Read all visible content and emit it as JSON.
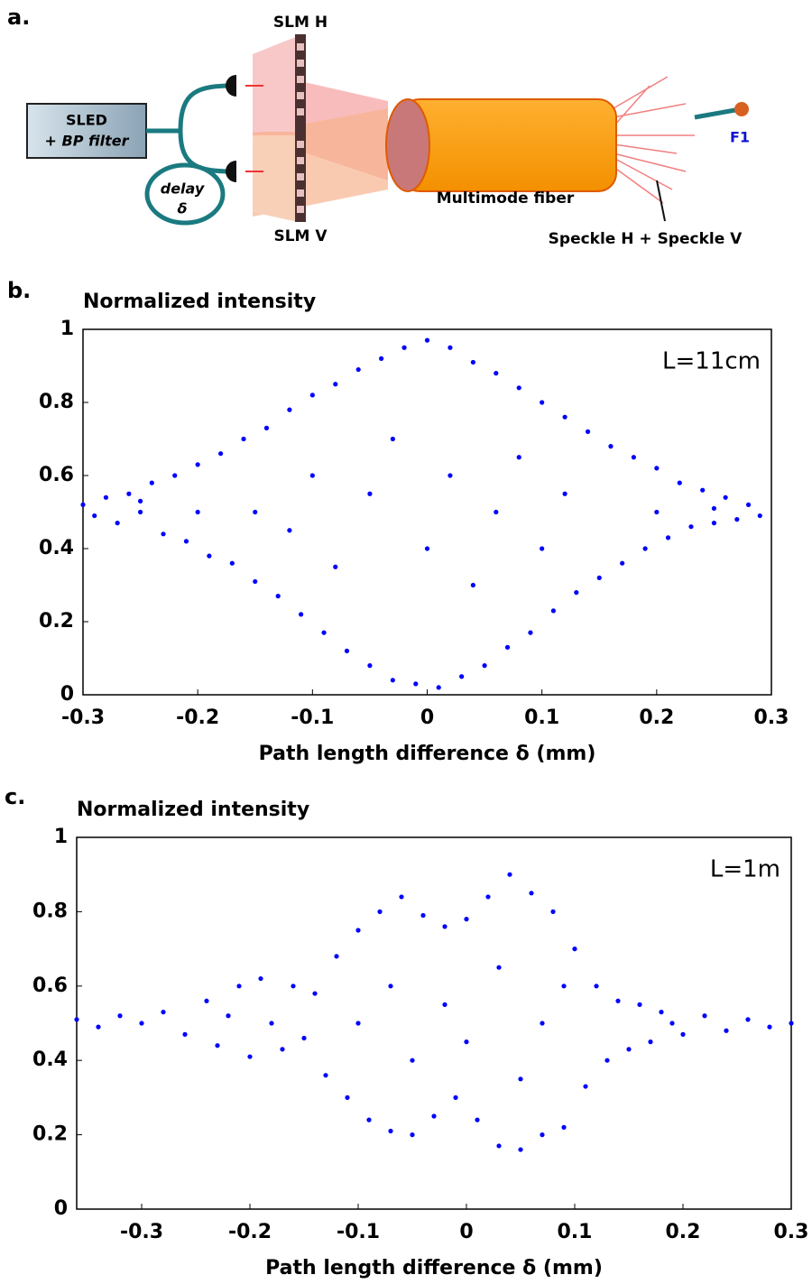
{
  "diagram": {
    "label": "a.",
    "slm_h": "SLM H",
    "slm_v": "SLM V",
    "source": "SLED",
    "filter": "+ BP filter",
    "delay": "delay",
    "delta": "δ",
    "fiber": "Multimode fiber",
    "speckle": "Speckle H + Speckle V",
    "detector": "F1"
  },
  "chart_data": [
    {
      "type": "scatter",
      "panel": "b.",
      "title": "Normalized intensity",
      "x_label": "Path length difference δ (mm)",
      "annotation": "L=11cm",
      "color": "#0000ff",
      "xlim": [
        -0.3,
        0.3
      ],
      "ylim": [
        0,
        1
      ],
      "xticks": [
        -0.3,
        -0.2,
        -0.1,
        0,
        0.1,
        0.2,
        0.3
      ],
      "yticks": [
        0,
        0.2,
        0.4,
        0.6,
        0.8,
        1
      ],
      "x": [
        -0.3,
        -0.29,
        -0.28,
        -0.27,
        -0.26,
        -0.25,
        -0.24,
        -0.23,
        -0.22,
        -0.21,
        -0.2,
        -0.19,
        -0.18,
        -0.17,
        -0.16,
        -0.15,
        -0.14,
        -0.13,
        -0.12,
        -0.11,
        -0.1,
        -0.09,
        -0.08,
        -0.07,
        -0.06,
        -0.05,
        -0.04,
        -0.03,
        -0.02,
        -0.01,
        0.0,
        0.01,
        0.02,
        0.03,
        0.04,
        0.05,
        0.06,
        0.07,
        0.08,
        0.09,
        0.1,
        0.11,
        0.12,
        0.13,
        0.14,
        0.15,
        0.16,
        0.17,
        0.18,
        0.19,
        0.2,
        0.21,
        0.22,
        0.23,
        0.24,
        0.25,
        0.26,
        0.27,
        0.28,
        0.29,
        -0.15,
        -0.12,
        -0.1,
        -0.08,
        -0.05,
        -0.03,
        0.0,
        0.02,
        0.04,
        0.06,
        0.08,
        0.1,
        0.12,
        -0.2,
        0.2,
        -0.25,
        0.25
      ],
      "values": [
        0.52,
        0.49,
        0.54,
        0.47,
        0.55,
        0.5,
        0.58,
        0.44,
        0.6,
        0.42,
        0.63,
        0.38,
        0.66,
        0.36,
        0.7,
        0.31,
        0.73,
        0.27,
        0.78,
        0.22,
        0.82,
        0.17,
        0.85,
        0.12,
        0.89,
        0.08,
        0.92,
        0.04,
        0.95,
        0.03,
        0.97,
        0.02,
        0.95,
        0.05,
        0.91,
        0.08,
        0.88,
        0.13,
        0.84,
        0.17,
        0.8,
        0.23,
        0.76,
        0.28,
        0.72,
        0.32,
        0.68,
        0.36,
        0.65,
        0.4,
        0.62,
        0.43,
        0.58,
        0.46,
        0.56,
        0.47,
        0.54,
        0.48,
        0.52,
        0.49,
        0.5,
        0.45,
        0.6,
        0.35,
        0.55,
        0.7,
        0.4,
        0.6,
        0.3,
        0.5,
        0.65,
        0.4,
        0.55,
        0.5,
        0.5,
        0.53,
        0.51
      ]
    },
    {
      "type": "scatter",
      "panel": "c.",
      "title": "Normalized intensity",
      "x_label": "Path length difference δ (mm)",
      "annotation": "L=1m",
      "color": "#0000ff",
      "xlim": [
        -0.36,
        0.3
      ],
      "ylim": [
        0,
        1
      ],
      "xticks": [
        -0.3,
        -0.2,
        -0.1,
        0,
        0.1,
        0.2,
        0.3
      ],
      "yticks": [
        0,
        0.2,
        0.4,
        0.6,
        0.8,
        1
      ],
      "x": [
        -0.36,
        -0.34,
        -0.32,
        -0.3,
        -0.28,
        -0.26,
        -0.24,
        -0.23,
        -0.21,
        -0.2,
        -0.19,
        -0.17,
        -0.16,
        -0.15,
        -0.14,
        -0.13,
        -0.12,
        -0.11,
        -0.1,
        -0.09,
        -0.08,
        -0.07,
        -0.06,
        -0.05,
        -0.04,
        -0.03,
        -0.02,
        -0.01,
        0.0,
        0.01,
        0.02,
        0.03,
        0.04,
        0.05,
        0.06,
        0.07,
        0.08,
        0.09,
        0.1,
        0.11,
        0.12,
        0.13,
        0.14,
        0.15,
        0.16,
        0.17,
        0.18,
        0.2,
        0.22,
        0.24,
        0.26,
        0.28,
        0.3,
        -0.1,
        -0.07,
        -0.05,
        -0.02,
        0.0,
        0.03,
        0.05,
        0.07,
        0.09,
        -0.18,
        -0.22,
        0.19
      ],
      "values": [
        0.51,
        0.49,
        0.52,
        0.5,
        0.53,
        0.47,
        0.56,
        0.44,
        0.6,
        0.41,
        0.62,
        0.43,
        0.6,
        0.46,
        0.58,
        0.36,
        0.68,
        0.3,
        0.75,
        0.24,
        0.8,
        0.21,
        0.84,
        0.2,
        0.79,
        0.25,
        0.76,
        0.3,
        0.78,
        0.24,
        0.84,
        0.17,
        0.9,
        0.16,
        0.85,
        0.2,
        0.8,
        0.22,
        0.7,
        0.33,
        0.6,
        0.4,
        0.56,
        0.43,
        0.55,
        0.45,
        0.53,
        0.47,
        0.52,
        0.48,
        0.51,
        0.49,
        0.5,
        0.5,
        0.6,
        0.4,
        0.55,
        0.45,
        0.65,
        0.35,
        0.5,
        0.6,
        0.5,
        0.52,
        0.5
      ]
    }
  ]
}
